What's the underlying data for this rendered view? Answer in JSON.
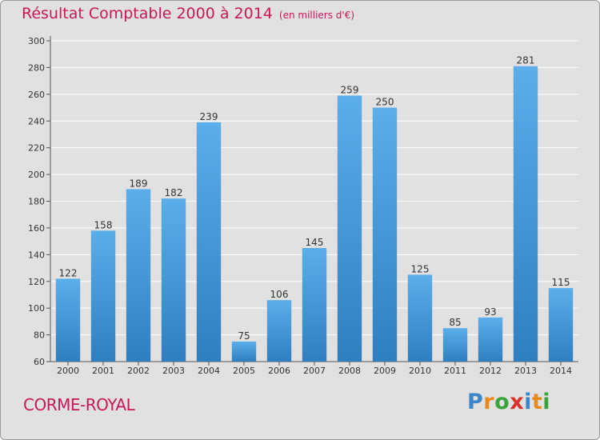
{
  "title": "Résultat Comptable 2000 à 2014",
  "unit": "(en milliers d'€)",
  "commune": "CORME-ROYAL",
  "brand": {
    "name": "Proxiti",
    "letters": [
      {
        "ch": "P",
        "color": "#3a86c8"
      },
      {
        "ch": "r",
        "color": "#e8891a"
      },
      {
        "ch": "o",
        "color": "#3ba33b"
      },
      {
        "ch": "x",
        "color": "#d8342c"
      },
      {
        "ch": "i",
        "color": "#3a86c8"
      },
      {
        "ch": "t",
        "color": "#e8891a"
      },
      {
        "ch": "i",
        "color": "#3ba33b"
      }
    ]
  },
  "colors": {
    "bar_top": "#5aaeea",
    "bar_bottom": "#2f7fc0",
    "title": "#c8185a",
    "grid": "#ffffff",
    "text": "#333333"
  },
  "chart_data": {
    "type": "bar",
    "title": "Résultat Comptable 2000 à 2014",
    "subtitle": "(en milliers d'€)",
    "xlabel": "",
    "ylabel": "",
    "categories": [
      "2000",
      "2001",
      "2002",
      "2003",
      "2004",
      "2005",
      "2006",
      "2007",
      "2008",
      "2009",
      "2010",
      "2011",
      "2012",
      "2013",
      "2014"
    ],
    "values": [
      122,
      158,
      189,
      182,
      239,
      75,
      106,
      145,
      259,
      250,
      125,
      85,
      93,
      281,
      115
    ],
    "ylim": [
      60,
      300
    ],
    "yticks": [
      60,
      80,
      100,
      120,
      140,
      160,
      180,
      200,
      220,
      240,
      260,
      280,
      300
    ],
    "grid": true,
    "data_labels": true
  }
}
